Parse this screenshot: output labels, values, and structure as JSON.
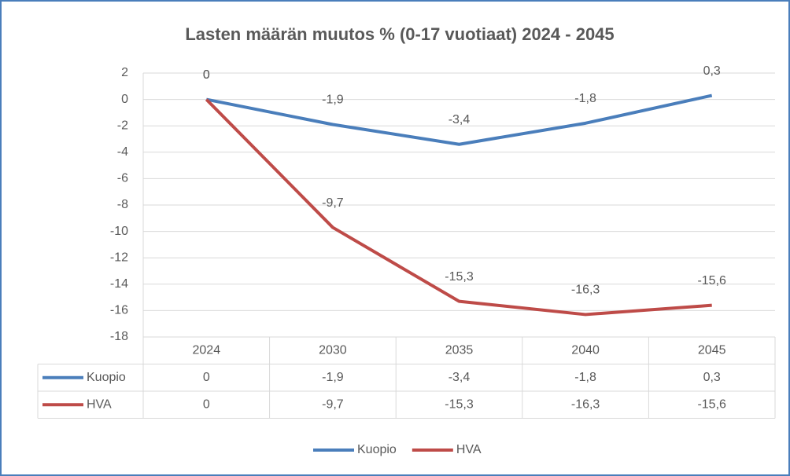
{
  "chart_data": {
    "type": "line",
    "title": "Lasten määrän muutos % (0-17 vuotiaat) 2024 - 2045",
    "categories": [
      "2024",
      "2030",
      "2035",
      "2040",
      "2045"
    ],
    "series": [
      {
        "name": "Kuopio",
        "color": "#4a7ebb",
        "values": [
          0,
          -1.9,
          -3.4,
          -1.8,
          0.3
        ],
        "value_labels": [
          "0",
          "-1,9",
          "-3,4",
          "-1,8",
          "0,3"
        ]
      },
      {
        "name": "HVA",
        "color": "#be4b48",
        "values": [
          0,
          -9.7,
          -15.3,
          -16.3,
          -15.6
        ],
        "value_labels": [
          "0",
          "-9,7",
          "-15,3",
          "-16,3",
          "-15,6"
        ]
      }
    ],
    "ylim": [
      -18,
      2
    ],
    "yticks": [
      2,
      0,
      -2,
      -4,
      -6,
      -8,
      -10,
      -12,
      -14,
      -16,
      -18
    ],
    "grid": true,
    "legend": "bottom",
    "data_table": true
  }
}
